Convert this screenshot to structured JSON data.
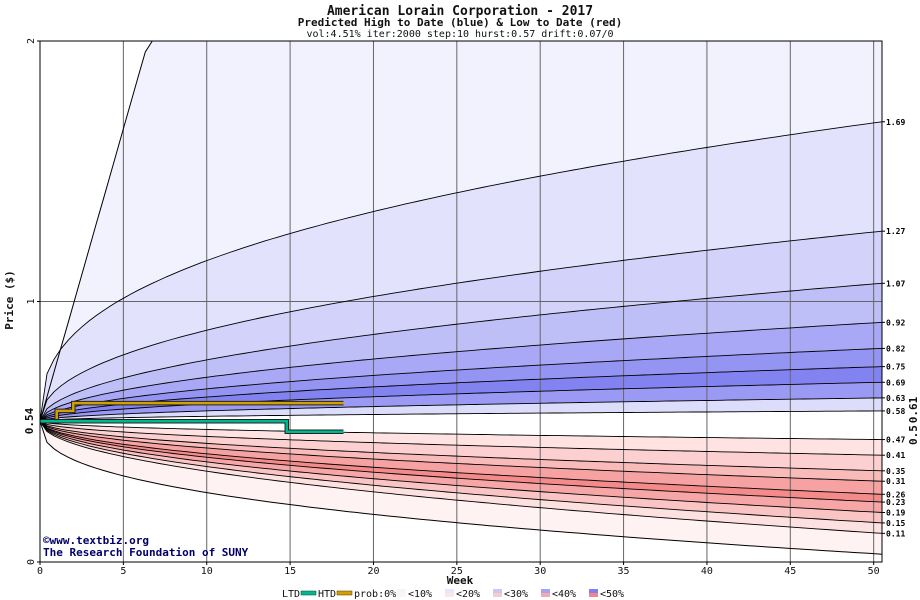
{
  "chart_data": {
    "type": "area",
    "title": "American Lorain Corporation - 2017",
    "subtitle": "Predicted High to Date (blue) &  Low to Date (red)",
    "params": "vol:4.51% iter:2000 step:10 hurst:0.57 drift:0.07/0",
    "xlabel": "Week",
    "ylabel": "Price ($)",
    "xlim": [
      0,
      50.5
    ],
    "ylim": [
      0,
      2
    ],
    "x_ticks": [
      0,
      5,
      10,
      15,
      20,
      25,
      30,
      35,
      40,
      45,
      50
    ],
    "y_ticks": [
      0,
      1,
      2
    ],
    "current_price": "0.54",
    "current_price_value": 0.54,
    "htd_marker": "0.61",
    "htd_value": 0.61,
    "ltd_marker": "0.5",
    "ltd_value": 0.5,
    "high_quantiles": [
      {
        "label": "1.69",
        "end": 1.69,
        "k": 2.6
      },
      {
        "label": "1.27",
        "end": 1.27,
        "k": 2.2
      },
      {
        "label": "1.07",
        "end": 1.07,
        "k": 2.0
      },
      {
        "label": "0.92",
        "end": 0.92,
        "k": 2.0
      },
      {
        "label": "0.82",
        "end": 0.82,
        "k": 2.0
      },
      {
        "label": "0.75",
        "end": 0.75,
        "k": 2.0
      },
      {
        "label": "0.69",
        "end": 0.69,
        "k": 2.0
      },
      {
        "label": "0.63",
        "end": 0.63,
        "k": 2.0
      },
      {
        "label": "0.58",
        "end": 0.58,
        "k": 2.2
      }
    ],
    "low_quantiles": [
      {
        "label": "0.47",
        "end": 0.47,
        "k": 2.0
      },
      {
        "label": "0.41",
        "end": 0.41,
        "k": 2.0
      },
      {
        "label": "0.35",
        "end": 0.35,
        "k": 2.0
      },
      {
        "label": "0.31",
        "end": 0.31,
        "k": 2.0
      },
      {
        "label": "0.26",
        "end": 0.26,
        "k": 2.0
      },
      {
        "label": "0.23",
        "end": 0.23,
        "k": 2.0
      },
      {
        "label": "0.19",
        "end": 0.19,
        "k": 2.0
      },
      {
        "label": "0.15",
        "end": 0.15,
        "k": 2.0
      },
      {
        "label": "0.11",
        "end": 0.11,
        "k": 2.0
      }
    ],
    "extreme_high": {
      "reaches_top_at_week": 6.5
    },
    "extreme_low": {
      "end": 0.03
    },
    "htd_line": {
      "x": [
        1,
        1,
        2,
        2,
        18.2
      ],
      "y": [
        0.54,
        0.58,
        0.58,
        0.61,
        0.61
      ]
    },
    "ltd_line": {
      "x": [
        0,
        14.8,
        14.8,
        18.2
      ],
      "y": [
        0.54,
        0.54,
        0.5,
        0.5
      ]
    },
    "colors": {
      "htd": "#d4a000",
      "ltd": "#00b890",
      "current": "#006633",
      "htd_label": "#aa7700",
      "ltd_label": "#008855",
      "band_out_blue": "#f2f2ff",
      "band_out_red": "#fff2f2",
      "blue_bands": [
        "#e2e2fc",
        "#d2d2fa",
        "#bfbff8",
        "#a8a8f6",
        "#9494f3",
        "#8282f0",
        "#9a9af4",
        "#dcdcfb"
      ],
      "red_bands": [
        "#ffe2e2",
        "#fcd0d0",
        "#f9baba",
        "#f6a2a2",
        "#f48a8a",
        "#f6a6a6",
        "#fac4c4",
        "#fde0e0"
      ]
    }
  },
  "credit": {
    "line1": "©www.textbiz.org",
    "line2": "The Research Foundation of SUNY"
  },
  "legend": {
    "ltd": "LTD",
    "htd": "HTD",
    "prob": "prob:0%",
    "items": [
      "<10%",
      "<20%",
      "<30%",
      "<40%",
      "<50%"
    ],
    "colors": [
      "#f4f4ff",
      "#e6e6fc",
      "#c8c8f8",
      "#a4a4f4",
      "#8080f0"
    ],
    "colors_red": [
      "#fff4f4",
      "#fce6e6",
      "#f8cccc",
      "#f4aaaa",
      "#f08888"
    ]
  }
}
